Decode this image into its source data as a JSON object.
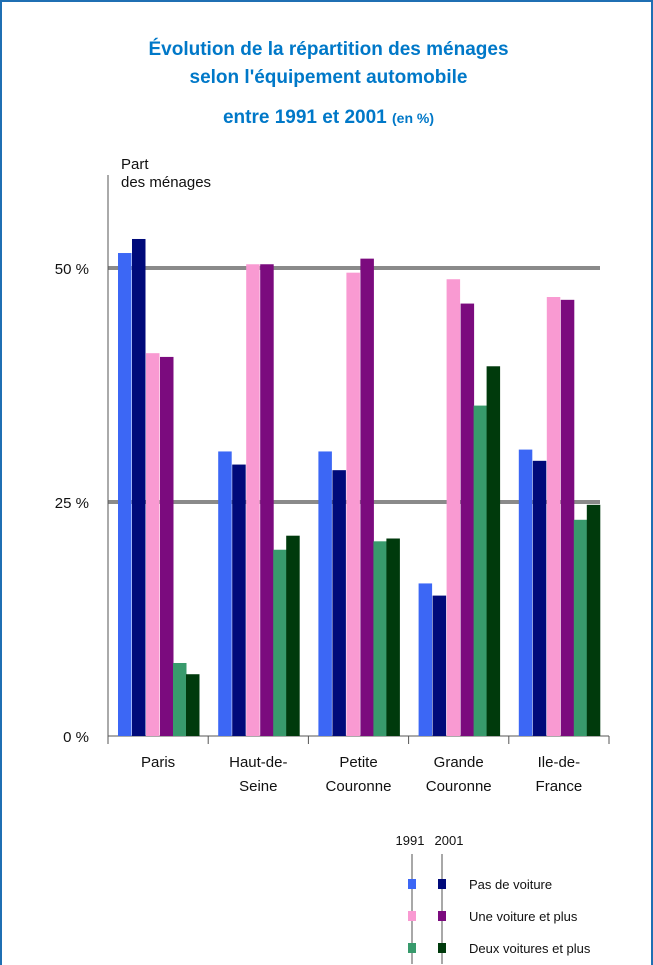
{
  "chart_data": {
    "type": "bar",
    "title_lines": [
      "Évolution de la répartition des ménages",
      "selon l'équipement automobile",
      "entre 1991 et 2001"
    ],
    "title_unit": "(en %)",
    "ylabel_lines": [
      "Part",
      "des ménages"
    ],
    "ylim": [
      0,
      60
    ],
    "y_ticks": [
      {
        "value": 0,
        "label": "0 %"
      },
      {
        "value": 25,
        "label": "25 %"
      },
      {
        "value": 50,
        "label": "50 %"
      }
    ],
    "gridlines": [
      25,
      50
    ],
    "categories": [
      [
        "Paris"
      ],
      [
        "Haut-de-",
        "Seine"
      ],
      [
        "Petite",
        "Couronne"
      ],
      [
        "Grande",
        "Couronne"
      ],
      [
        "Ile-de-",
        "France"
      ]
    ],
    "series": [
      {
        "group": "Pas de voiture",
        "year": "1991",
        "color": "#3c67f5",
        "values": [
          51.6,
          30.4,
          30.4,
          16.3,
          30.6
        ]
      },
      {
        "group": "Pas de voiture",
        "year": "2001",
        "color": "#000a7a",
        "values": [
          53.1,
          29.0,
          28.4,
          15.0,
          29.4
        ]
      },
      {
        "group": "Une voiture et plus",
        "year": "1991",
        "color": "#f99ad2",
        "values": [
          40.9,
          50.4,
          49.5,
          48.8,
          46.9
        ]
      },
      {
        "group": "Une voiture et plus",
        "year": "2001",
        "color": "#7b0b7e",
        "values": [
          40.5,
          50.4,
          51.0,
          46.2,
          46.6
        ]
      },
      {
        "group": "Deux voitures et plus",
        "year": "1991",
        "color": "#389a6c",
        "values": [
          7.8,
          19.9,
          20.8,
          35.3,
          23.1
        ]
      },
      {
        "group": "Deux voitures et plus",
        "year": "2001",
        "color": "#003a0c",
        "values": [
          6.6,
          21.4,
          21.1,
          39.5,
          24.7
        ]
      }
    ],
    "legend": {
      "years": [
        "1991",
        "2001"
      ],
      "entries": [
        "Pas de voiture",
        "Une voiture et plus",
        "Deux voitures et plus"
      ]
    }
  }
}
